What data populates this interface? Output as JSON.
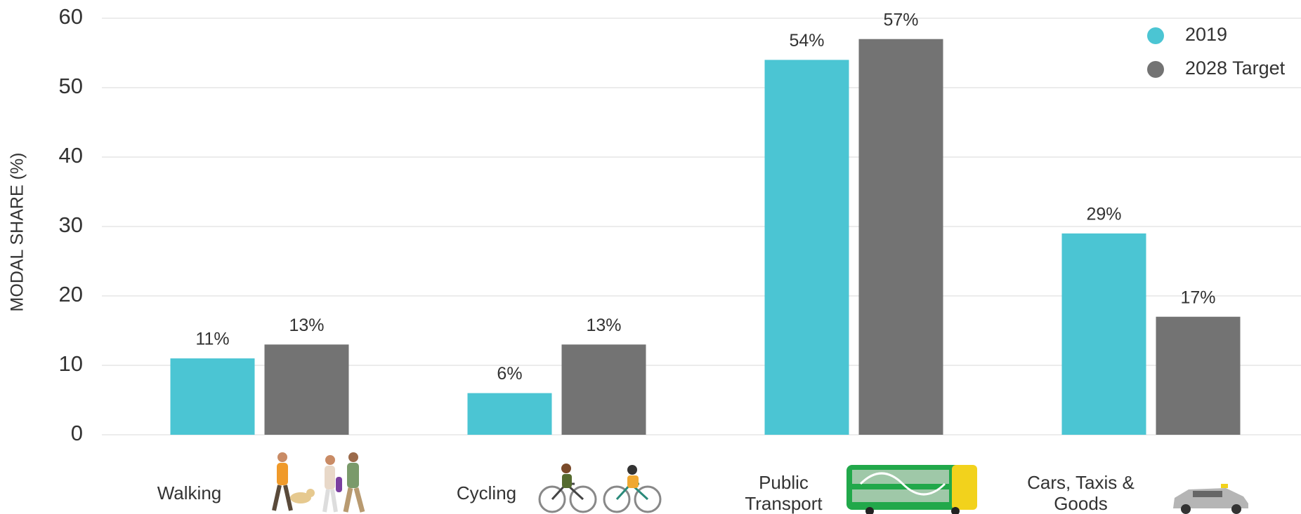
{
  "chart_data": {
    "type": "bar",
    "y_label": "MODAL SHARE (%)",
    "categories": [
      "Walking",
      "Cycling",
      "Public Transport",
      "Cars, Taxis & Goods"
    ],
    "series": [
      {
        "name": "2019",
        "color": "#4bc5d3",
        "values": [
          11,
          6,
          54,
          29
        ],
        "value_labels": [
          "11%",
          "6%",
          "54%",
          "29%"
        ]
      },
      {
        "name": "2028 Target",
        "color": "#737373",
        "values": [
          13,
          13,
          57,
          17
        ],
        "value_labels": [
          "13%",
          "13%",
          "57%",
          "17%"
        ]
      }
    ],
    "ylim": [
      0,
      60
    ],
    "yticks": [
      0,
      10,
      20,
      30,
      40,
      50,
      60
    ],
    "grid": true,
    "legend": "top-right"
  }
}
